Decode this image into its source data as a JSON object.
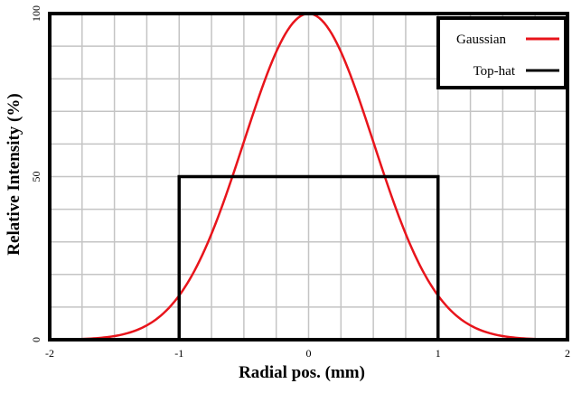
{
  "chart_data": {
    "type": "line",
    "xlabel": "Radial pos. (mm)",
    "ylabel": "Relative Intensity (%)",
    "xlim": [
      -2,
      2
    ],
    "ylim": [
      0,
      100
    ],
    "x_ticks": [
      "-2",
      "-1",
      "0",
      "1",
      "2"
    ],
    "y_ticks": [
      "0",
      "50",
      "100"
    ],
    "grid": true,
    "legend_position": "top-right",
    "series": [
      {
        "name": "Gaussian",
        "color": "#e8141b",
        "x": [
          -2.0,
          -1.75,
          -1.5,
          -1.25,
          -1.0,
          -0.75,
          -0.5,
          -0.25,
          0.0,
          0.25,
          0.5,
          0.75,
          1.0,
          1.25,
          1.5,
          1.75,
          2.0
        ],
        "y": [
          0.03,
          0.2,
          1.1,
          4.4,
          13.5,
          32.5,
          60.7,
          88.2,
          100,
          88.2,
          60.7,
          32.5,
          13.5,
          4.4,
          1.1,
          0.2,
          0.03
        ]
      },
      {
        "name": "Top-hat",
        "color": "#000000",
        "x": [
          -1,
          -1,
          1,
          1
        ],
        "y": [
          0,
          50,
          50,
          0
        ]
      }
    ]
  }
}
